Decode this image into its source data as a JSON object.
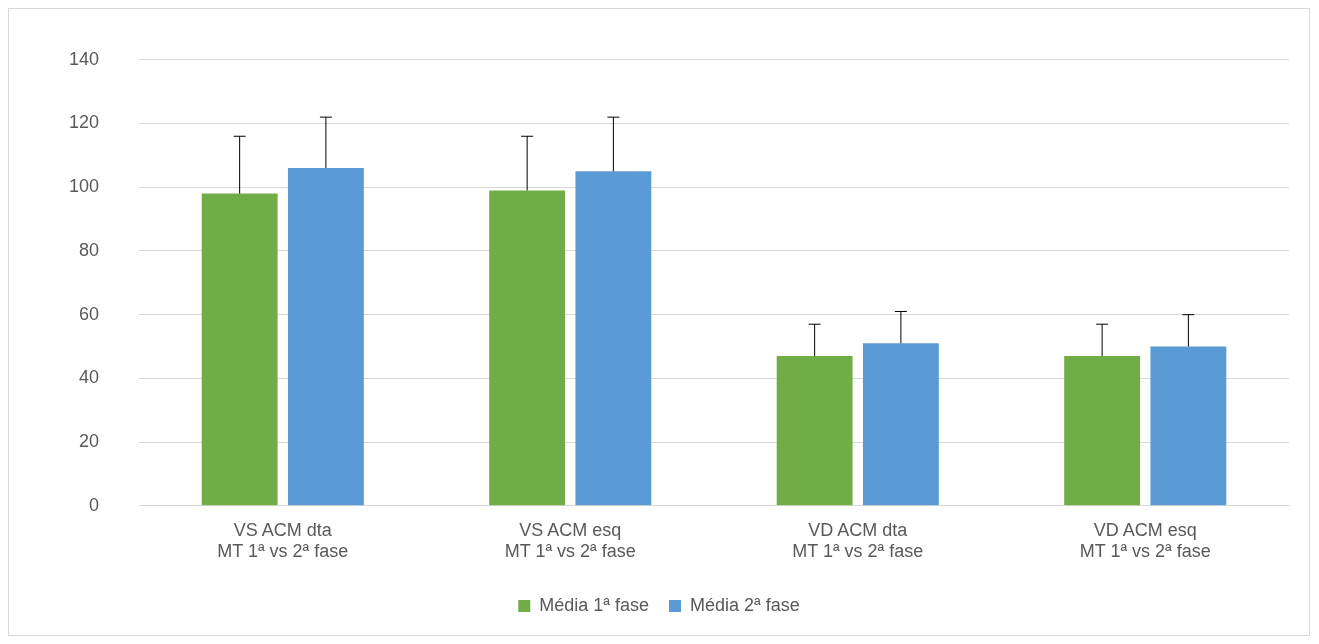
{
  "chart_data": {
    "type": "bar",
    "categories": [
      "VS ACM dta\nMT 1ª vs 2ª fase",
      "VS ACM esq\nMT 1ª vs 2ª fase",
      "VD ACM dta\nMT 1ª vs 2ª fase",
      "VD ACM esq\nMT 1ª vs 2ª fase"
    ],
    "series": [
      {
        "name": "Média 1ª fase",
        "color": "#70ad47",
        "values": [
          98,
          99,
          47,
          47
        ],
        "errors": [
          [
            98,
            116
          ],
          [
            99,
            116
          ],
          [
            47,
            57
          ],
          [
            47,
            57
          ]
        ]
      },
      {
        "name": "Média 2ª fase",
        "color": "#5b9bd5",
        "values": [
          106,
          105,
          51,
          50
        ],
        "errors": [
          [
            106,
            122
          ],
          [
            105,
            122
          ],
          [
            51,
            61
          ],
          [
            50,
            60
          ]
        ]
      }
    ],
    "ylim": [
      0,
      140
    ],
    "yticks": [
      0,
      20,
      40,
      60,
      80,
      100,
      120,
      140
    ],
    "grid": "y",
    "legend": "bottom"
  }
}
